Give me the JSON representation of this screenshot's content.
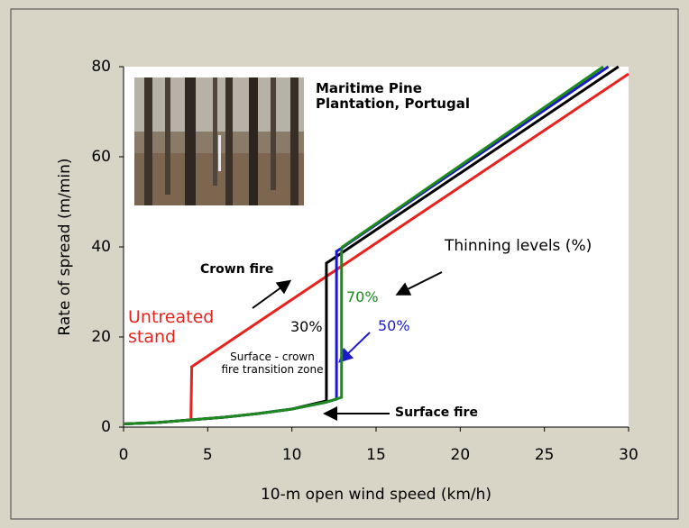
{
  "chart_data": {
    "type": "line",
    "xlabel": "10-m open wind speed (km/h)",
    "ylabel": "Rate of spread (m/min)",
    "xlim": [
      0,
      30
    ],
    "xticks": [
      0,
      5,
      10,
      15,
      20,
      25,
      30
    ],
    "ylim": [
      0,
      80
    ],
    "yticks": [
      0,
      20,
      40,
      60,
      80
    ],
    "grid": false,
    "series": [
      {
        "name": "Untreated stand",
        "color": "#e8221c",
        "x": [
          0,
          2,
          4,
          4.05,
          30
        ],
        "values": [
          0.7,
          1.0,
          1.6,
          13.4,
          78.4
        ]
      },
      {
        "name": "30%",
        "color": "#000000",
        "x": [
          0,
          2,
          4,
          6,
          8,
          10,
          12.05,
          12.05,
          12.5,
          29.4
        ],
        "values": [
          0.7,
          1.0,
          1.6,
          2.2,
          3.0,
          4.0,
          5.8,
          36.4,
          37.5,
          80
        ]
      },
      {
        "name": "50%",
        "color": "#1a1acc",
        "x": [
          0,
          2,
          4,
          6,
          8,
          10,
          12,
          12.65,
          12.65,
          12.9,
          28.8
        ],
        "values": [
          0.7,
          1.0,
          1.6,
          2.2,
          3.0,
          4.0,
          5.5,
          6.2,
          39.0,
          39.6,
          80
        ]
      },
      {
        "name": "70%",
        "color": "#1e8a1e",
        "x": [
          0,
          2,
          4,
          6,
          8,
          10,
          12,
          12.95,
          12.95,
          13.0,
          28.5
        ],
        "values": [
          0.7,
          1.0,
          1.6,
          2.2,
          3.0,
          4.0,
          5.5,
          6.6,
          39.5,
          40.0,
          80
        ]
      }
    ],
    "annotations": {
      "photo_caption": "Maritime Pine Plantation, Portugal",
      "crown_fire": "Crown fire",
      "thinning_levels": "Thinning levels (%)",
      "transition_zone": "Surface - crown fire transition zone",
      "surface_fire": "Surface fire"
    }
  }
}
